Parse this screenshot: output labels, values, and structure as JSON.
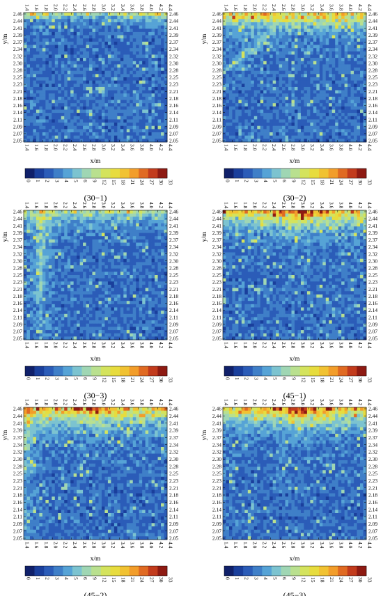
{
  "figure": {
    "panels": [
      {
        "caption": "(30−1)",
        "pattern": "top_band_weak"
      },
      {
        "caption": "(30−2)",
        "pattern": "top_band_diag"
      },
      {
        "caption": "(30−3)",
        "pattern": "vertical_left"
      },
      {
        "caption": "(45−1)",
        "pattern": "top_band_strong"
      },
      {
        "caption": "(45−2)",
        "pattern": "top_band_left"
      },
      {
        "caption": "(45−3)",
        "pattern": "top_band_strong"
      }
    ],
    "colorscale": [
      "#10206a",
      "#1a3f9c",
      "#2b5cb8",
      "#3f7fc8",
      "#56a3d6",
      "#7cc3d0",
      "#9fd6b4",
      "#b9e08f",
      "#d4e35d",
      "#e7dc3e",
      "#f1c232",
      "#f29d2a",
      "#e06a22",
      "#c23b1c",
      "#8e1a12"
    ]
  },
  "chart_data": {
    "type": "heatmap",
    "xlabel": "x/m",
    "ylabel": "y/m",
    "x_ticks": [
      "1.4",
      "1.6",
      "1.8",
      "2.0",
      "2.2",
      "2.4",
      "2.6",
      "2.8",
      "3.0",
      "3.2",
      "3.4",
      "3.6",
      "3.8",
      "4.0",
      "4.2",
      "4.4"
    ],
    "y_ticks_left": [
      "2.46",
      "2.44",
      "2.41",
      "2.39",
      "2.37",
      "2.34",
      "2.32",
      "2.30",
      "2.28",
      "2.25",
      "2.23",
      "2.21",
      "2.18",
      "2.16",
      "2.14",
      "2.11",
      "2.09",
      "2.07",
      "2.05"
    ],
    "y_ticks_right": [
      "2.46",
      "2.44",
      "2.41",
      "2.39",
      "2.37",
      "2.34",
      "2.32",
      "2.30",
      "2.28",
      "2.25",
      "2.23",
      "2.21",
      "2.18",
      "2.16",
      "2.14",
      "2.11",
      "2.09",
      "2.07",
      "2.05"
    ],
    "colorbar_ticks": [
      "0",
      "1",
      "2",
      "3",
      "4",
      "5",
      "6",
      "9",
      "12",
      "15",
      "18",
      "21",
      "24",
      "27",
      "30",
      "33"
    ],
    "xlim": [
      1.4,
      4.4
    ],
    "ylim": [
      2.05,
      2.46
    ]
  }
}
